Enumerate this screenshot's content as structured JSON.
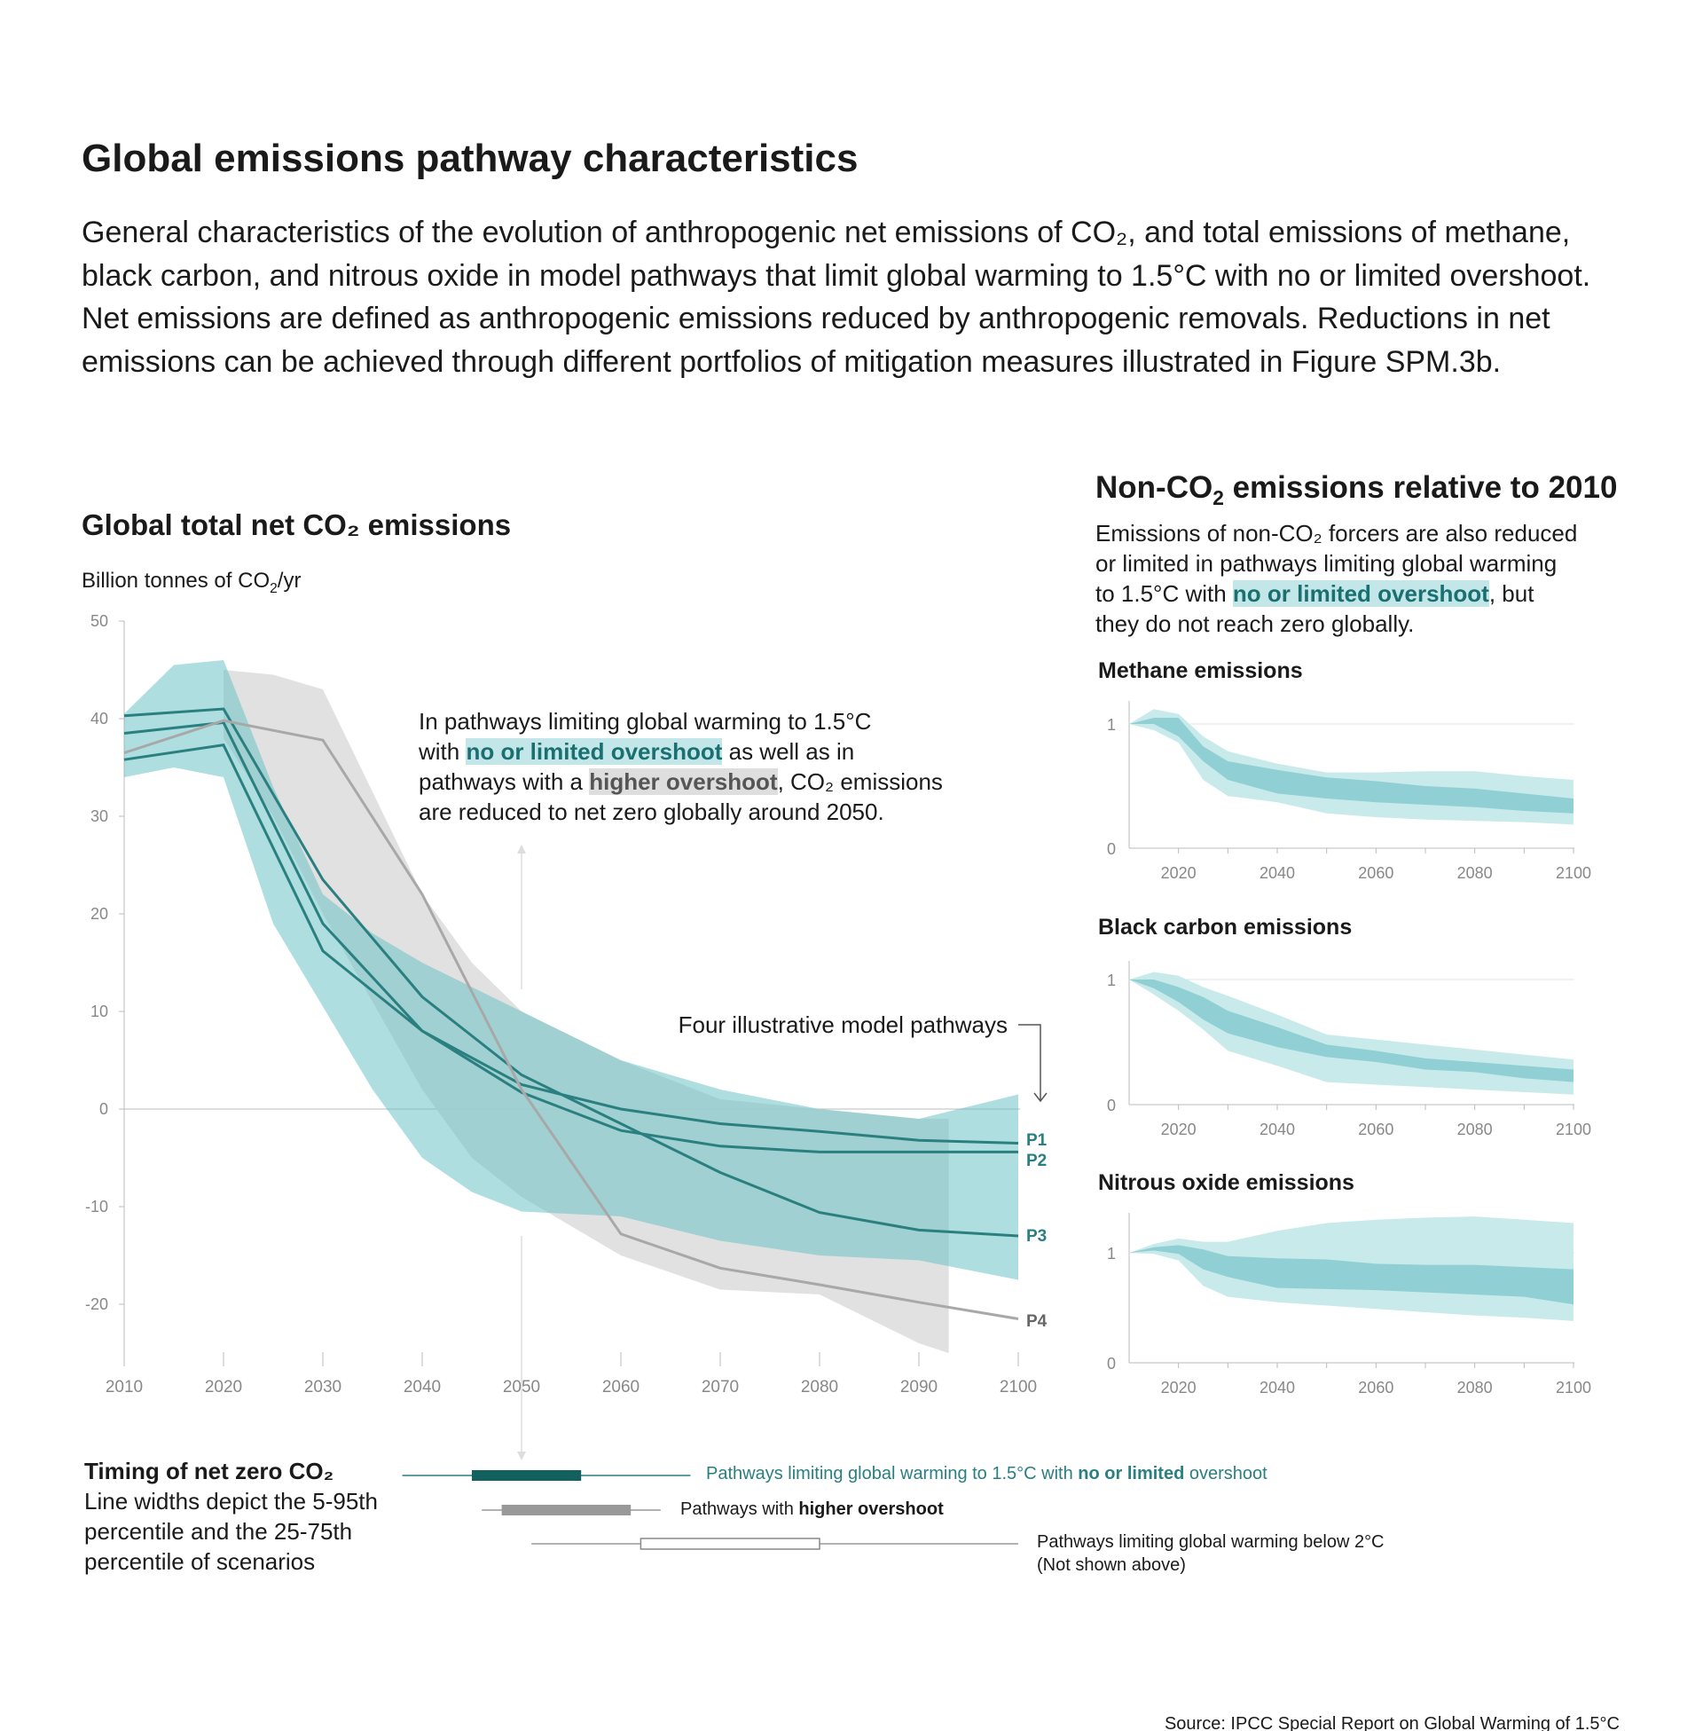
{
  "title": "Global emissions pathway characteristics",
  "intro": "General characteristics of the evolution of anthropogenic net emissions of CO₂, and total emissions of methane, black carbon, and nitrous oxide in model pathways that limit global warming to 1.5°C with no or limited overshoot. Net emissions are defined as anthropogenic emissions reduced by anthropogenic removals. Reductions in net emissions can be achieved through different portfolios of mitigation measures illustrated in Figure SPM.3b.",
  "colors": {
    "teal_band": "#6cc3c5",
    "teal_line": "#2a7f80",
    "gray_band": "#dcdcdc",
    "gray_line": "#a8a8a8",
    "teal_light": "#c9eaeb",
    "teal_mid": "#90d0d5",
    "dark_teal": "#13615f"
  },
  "annotation": {
    "line1": "In pathways limiting global warming to 1.5°C",
    "line2_a": "with ",
    "line2_hl": "no or limited overshoot",
    "line2_b": " as well as in",
    "line3_a": "pathways with a ",
    "line3_hl": "higher overshoot",
    "line3_b": ", CO₂ emissions",
    "line4": "are reduced to net zero globally around 2050.",
    "four_pathways": "Four illustrative model pathways"
  },
  "right": {
    "heading_a": "Non-CO",
    "heading_sub": "2",
    "heading_b": " emissions relative to 2010",
    "p1": "Emissions of non-CO₂ forcers are also reduced",
    "p2": "or limited in pathways limiting global warming",
    "p3_a": "to 1.5°C with ",
    "p3_hl": "no or limited overshoot",
    "p3_b": ", but",
    "p4": "they do not reach zero globally."
  },
  "legend": {
    "title": "Timing of net zero CO₂",
    "desc1": "Line widths depict the 5-95th",
    "desc2": "percentile and the 25-75th",
    "desc3": "percentile of scenarios",
    "items": [
      {
        "label_a": "Pathways limiting global warming to 1.5°C with ",
        "label_b": "no or limited",
        "label_c": " overshoot",
        "p5": 2038,
        "p25": 2045,
        "p75": 2056,
        "p95": 2067
      },
      {
        "label_a": "Pathways with ",
        "label_b": "higher overshoot",
        "label_c": "",
        "p5": 2046,
        "p25": 2048,
        "p75": 2061,
        "p95": 2064
      },
      {
        "label_a": "Pathways limiting global warming below 2°C",
        "label_b": "",
        "label_c": "",
        "label_2": "(Not shown above)",
        "p5": 2051,
        "p25": 2062,
        "p75": 2080,
        "p95": 2100
      }
    ]
  },
  "source": "Source: IPCC Special Report on Global Warming of 1.5°C",
  "chart_data": [
    {
      "type": "area",
      "title": "Global total net CO₂ emissions",
      "ylabel_a": "Billion tonnes of CO",
      "ylabel_sub": "2",
      "ylabel_b": "/yr",
      "xlim": [
        2010,
        2100
      ],
      "ylim": [
        -25,
        50
      ],
      "xticks": [
        "2010",
        "2020",
        "2030",
        "2040",
        "2050",
        "2060",
        "2070",
        "2080",
        "2090",
        "2100"
      ],
      "yticks": [
        "50",
        "40",
        "30",
        "20",
        "10",
        "0",
        "-10",
        "-20"
      ],
      "ytick_values": [
        50,
        40,
        30,
        20,
        10,
        0,
        -10,
        -20
      ],
      "bands": {
        "no_or_limited_overshoot": {
          "x": [
            2010,
            2015,
            2020,
            2025,
            2030,
            2035,
            2040,
            2045,
            2050,
            2060,
            2070,
            2080,
            2090,
            2100
          ],
          "upper": [
            40.5,
            45.5,
            46,
            33,
            22,
            18,
            15,
            12.5,
            10,
            5,
            2,
            0,
            -1,
            1.5
          ],
          "lower": [
            34,
            35,
            34,
            19,
            10.5,
            2,
            -5,
            -8.5,
            -10.5,
            -11,
            -13.5,
            -15,
            -15.5,
            -17.5
          ]
        },
        "higher_overshoot": {
          "x": [
            2020,
            2025,
            2030,
            2040,
            2045,
            2050,
            2060,
            2070,
            2080,
            2090,
            2093
          ],
          "upper": [
            45,
            44.5,
            43,
            22,
            15,
            10,
            5,
            1,
            0,
            -1,
            -1
          ],
          "lower": [
            38,
            30,
            20,
            2,
            -5,
            -9,
            -15,
            -18.5,
            -19,
            -24,
            -25
          ]
        }
      },
      "x": [
        2010,
        2020,
        2030,
        2040,
        2050,
        2060,
        2070,
        2080,
        2090,
        2100
      ],
      "series": [
        {
          "name": "P1",
          "values": [
            35.8,
            37.3,
            16.2,
            8,
            2.5,
            0,
            -1.5,
            -2.3,
            -3.2,
            -3.5
          ]
        },
        {
          "name": "P2",
          "values": [
            38.5,
            39.6,
            19,
            8,
            1.7,
            -2.2,
            -3.8,
            -4.4,
            -4.4,
            -4.4
          ]
        },
        {
          "name": "P3",
          "values": [
            40.3,
            41,
            23.5,
            11.5,
            3.5,
            -1.5,
            -6.5,
            -10.6,
            -12.4,
            -13
          ]
        },
        {
          "name": "P4",
          "values": [
            36.5,
            39.8,
            37.8,
            22,
            2,
            -12.8,
            -16.3,
            -18,
            -19.8,
            -21.5
          ]
        }
      ]
    },
    {
      "type": "area",
      "title": "Methane emissions",
      "xlim": [
        2010,
        2100
      ],
      "ylim": [
        0,
        1.1
      ],
      "xticks": [
        "2020",
        "2040",
        "2060",
        "2080",
        "2100"
      ],
      "yticks": [
        "1",
        "0"
      ],
      "x": [
        2010,
        2015,
        2020,
        2025,
        2030,
        2040,
        2050,
        2060,
        2070,
        2080,
        2090,
        2100
      ],
      "p5": [
        1,
        0.95,
        0.85,
        0.55,
        0.42,
        0.37,
        0.28,
        0.25,
        0.23,
        0.22,
        0.21,
        0.19
      ],
      "p25": [
        1,
        1.0,
        0.9,
        0.7,
        0.55,
        0.44,
        0.4,
        0.37,
        0.35,
        0.33,
        0.3,
        0.28
      ],
      "p75": [
        1,
        1.05,
        1.05,
        0.82,
        0.7,
        0.63,
        0.57,
        0.54,
        0.5,
        0.48,
        0.44,
        0.4
      ],
      "p95": [
        1,
        1.12,
        1.08,
        0.9,
        0.78,
        0.68,
        0.61,
        0.61,
        0.62,
        0.62,
        0.58,
        0.55
      ]
    },
    {
      "type": "area",
      "title": "Black carbon emissions",
      "xlim": [
        2010,
        2100
      ],
      "ylim": [
        0,
        1.1
      ],
      "xticks": [
        "2020",
        "2040",
        "2060",
        "2080",
        "2100"
      ],
      "yticks": [
        "1",
        "0"
      ],
      "x": [
        2010,
        2015,
        2020,
        2025,
        2030,
        2040,
        2050,
        2060,
        2070,
        2080,
        2090,
        2100
      ],
      "p5": [
        1,
        0.88,
        0.75,
        0.6,
        0.43,
        0.31,
        0.18,
        0.16,
        0.14,
        0.12,
        0.1,
        0.08
      ],
      "p25": [
        1,
        0.93,
        0.82,
        0.68,
        0.57,
        0.46,
        0.38,
        0.34,
        0.28,
        0.26,
        0.21,
        0.18
      ],
      "p75": [
        1,
        1.0,
        0.94,
        0.86,
        0.75,
        0.62,
        0.48,
        0.43,
        0.37,
        0.34,
        0.31,
        0.28
      ],
      "p95": [
        1,
        1.06,
        1.03,
        0.94,
        0.87,
        0.72,
        0.56,
        0.52,
        0.48,
        0.44,
        0.4,
        0.36
      ]
    },
    {
      "type": "area",
      "title": "Nitrous oxide emissions",
      "xlim": [
        2010,
        2100
      ],
      "ylim": [
        0,
        1.36
      ],
      "xticks": [
        "2020",
        "2040",
        "2060",
        "2080",
        "2100"
      ],
      "yticks": [
        "1",
        "0"
      ],
      "x": [
        2010,
        2015,
        2020,
        2025,
        2030,
        2040,
        2050,
        2060,
        2070,
        2080,
        2090,
        2100
      ],
      "p5": [
        1,
        0.99,
        0.93,
        0.7,
        0.6,
        0.55,
        0.52,
        0.49,
        0.46,
        0.43,
        0.41,
        0.38
      ],
      "p25": [
        1,
        1.02,
        0.99,
        0.85,
        0.78,
        0.68,
        0.67,
        0.66,
        0.64,
        0.62,
        0.6,
        0.53
      ],
      "p75": [
        1,
        1.05,
        1.07,
        1.03,
        0.97,
        0.95,
        0.94,
        0.9,
        0.89,
        0.89,
        0.87,
        0.85
      ],
      "p95": [
        1,
        1.08,
        1.13,
        1.1,
        1.1,
        1.2,
        1.27,
        1.3,
        1.32,
        1.33,
        1.3,
        1.27
      ]
    }
  ]
}
